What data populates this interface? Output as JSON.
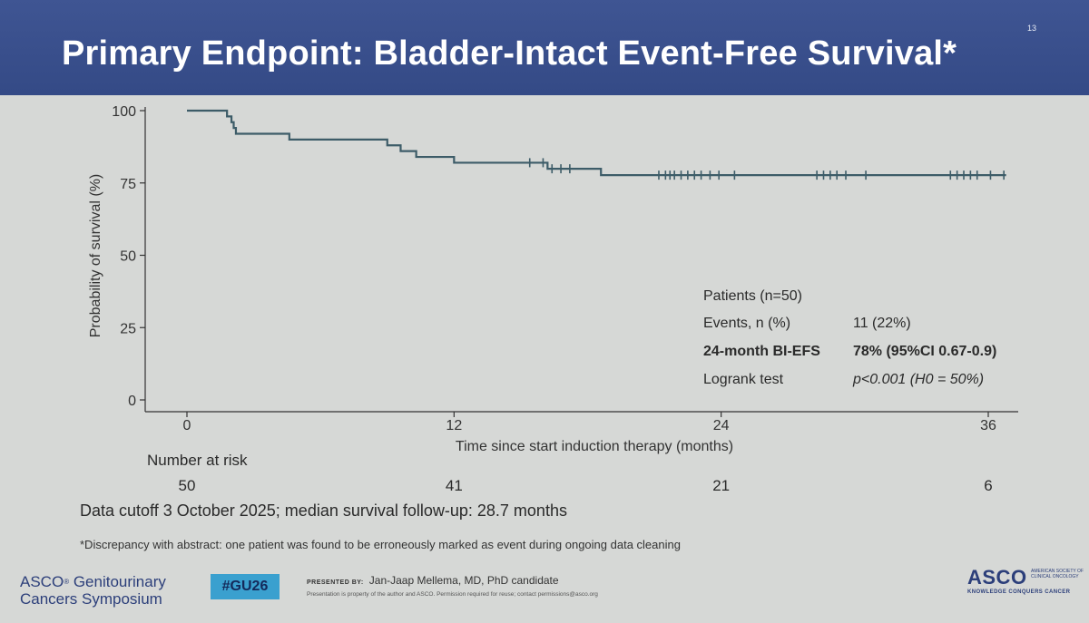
{
  "header": {
    "title": "Primary Endpoint: Bladder-Intact Event-Free Survival*",
    "slide_number": "13"
  },
  "chart_data": {
    "type": "line",
    "title": "",
    "xlabel": "Time since start induction therapy (months)",
    "ylabel": "Probability of survival (%)",
    "xlim": [
      0,
      37
    ],
    "ylim": [
      0,
      100
    ],
    "x_ticks": [
      0,
      12,
      24,
      36
    ],
    "x_tick_labels": [
      "0",
      "12",
      "24",
      "36"
    ],
    "y_ticks": [
      0,
      25,
      50,
      75,
      100
    ],
    "y_tick_labels": [
      "0",
      "25",
      "50",
      "75",
      "100"
    ],
    "grid": false,
    "series": [
      {
        "name": "Bladder-intact event-free survival",
        "color": "#3d5c68",
        "steps": [
          {
            "x": 0,
            "y": 100
          },
          {
            "x": 1.8,
            "y": 98
          },
          {
            "x": 2.0,
            "y": 96
          },
          {
            "x": 2.1,
            "y": 94
          },
          {
            "x": 2.2,
            "y": 92
          },
          {
            "x": 4.6,
            "y": 90
          },
          {
            "x": 9.0,
            "y": 88
          },
          {
            "x": 9.6,
            "y": 86
          },
          {
            "x": 10.3,
            "y": 84
          },
          {
            "x": 12.0,
            "y": 82
          },
          {
            "x": 16.2,
            "y": 79.9
          },
          {
            "x": 18.6,
            "y": 77.7
          }
        ],
        "end_x": 36.8,
        "censored": [
          15.4,
          16.0,
          16.4,
          16.8,
          17.2,
          21.2,
          21.5,
          21.7,
          21.9,
          22.2,
          22.5,
          22.8,
          23.1,
          23.5,
          23.9,
          24.6,
          28.3,
          28.6,
          28.9,
          29.2,
          29.6,
          30.5,
          34.3,
          34.6,
          34.9,
          35.2,
          35.5,
          36.1,
          36.7
        ]
      }
    ],
    "stats": {
      "patients_label": "Patients (n=50)",
      "events_label": "Events, n (%)",
      "events_value": "11 (22%)",
      "bi_efs_label": "24-month BI-EFS",
      "bi_efs_value": "78% (95%CI 0.67-0.9)",
      "logrank_label": "Logrank test",
      "logrank_value": "p<0.001 (H0 = 50%)"
    },
    "number_at_risk": {
      "label": "Number at risk",
      "times": [
        0,
        12,
        24,
        36
      ],
      "values": [
        "50",
        "41",
        "21",
        "6"
      ]
    }
  },
  "notes": {
    "cutoff": "Data cutoff 3 October 2025; median survival follow-up: 28.7 months",
    "footnote": "*Discrepancy with abstract: one patient was found to be erroneously marked as event during ongoing data cleaning"
  },
  "footer": {
    "logo_line1": "ASCO",
    "logo_reg": "®",
    "logo_line1b": "Genitourinary",
    "logo_line2": "Cancers Symposium",
    "hashtag": "#GU26",
    "presented_by_label": "PRESENTED BY:",
    "presenter": "Jan-Jaap Mellema, MD, PhD candidate",
    "notice": "Presentation is property of the author and ASCO. Permission required for reuse; contact permissions@asco.org",
    "brand_name": "ASCO",
    "brand_society": "AMERICAN SOCIETY OF CLINICAL ONCOLOGY",
    "brand_slogan": "KNOWLEDGE CONQUERS CANCER"
  },
  "colors": {
    "header_bg": "#3a5090",
    "curve": "#3d5c68",
    "tag_bg": "#3aa0cf"
  }
}
